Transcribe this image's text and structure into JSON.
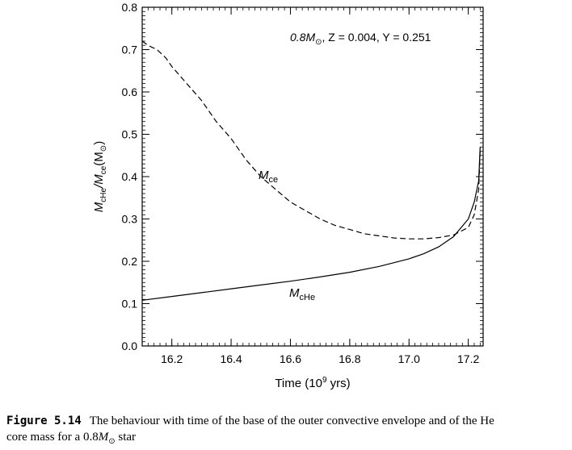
{
  "chart_data": {
    "type": "line",
    "annotation": {
      "mass": "0.8M",
      "mass_sub": "⊙",
      "rest": ", Z = 0.004, Y = 0.251"
    },
    "xlabel": {
      "main": "Time (10",
      "sup": "9",
      "end": " yrs)"
    },
    "ylabel": {
      "p1": "M",
      "s1": "cHe",
      "p2": "/M",
      "s2": "ce",
      "p3": "(M",
      "s3": "⊙",
      "p4": ")"
    },
    "xlim": [
      16.1,
      17.25
    ],
    "ylim": [
      0.0,
      0.8
    ],
    "xticks": [
      16.2,
      16.4,
      16.6,
      16.8,
      17.0,
      17.2
    ],
    "xtick_labels": [
      "16.2",
      "16.4",
      "16.6",
      "16.8",
      "17.0",
      "17.2"
    ],
    "yticks": [
      0.0,
      0.1,
      0.2,
      0.3,
      0.4,
      0.5,
      0.6,
      0.7,
      0.8
    ],
    "ytick_labels": [
      "0.0",
      "0.1",
      "0.2",
      "0.3",
      "0.4",
      "0.5",
      "0.6",
      "0.7",
      "0.8"
    ],
    "grid": false,
    "series": [
      {
        "name": "Mce",
        "label_main": "M",
        "label_sub": "ce",
        "style": "dashed",
        "x": [
          16.1,
          16.12,
          16.15,
          16.18,
          16.2,
          16.25,
          16.3,
          16.35,
          16.4,
          16.45,
          16.5,
          16.55,
          16.6,
          16.65,
          16.7,
          16.75,
          16.8,
          16.85,
          16.9,
          16.95,
          17.0,
          17.05,
          17.1,
          17.15,
          17.2,
          17.22,
          17.235,
          17.24
        ],
        "y": [
          0.72,
          0.71,
          0.7,
          0.68,
          0.66,
          0.62,
          0.58,
          0.53,
          0.49,
          0.44,
          0.4,
          0.37,
          0.34,
          0.32,
          0.3,
          0.285,
          0.275,
          0.265,
          0.26,
          0.255,
          0.253,
          0.253,
          0.256,
          0.262,
          0.28,
          0.31,
          0.37,
          0.46
        ]
      },
      {
        "name": "McHe",
        "label_main": "M",
        "label_sub": "cHe",
        "style": "solid",
        "x": [
          16.1,
          16.2,
          16.3,
          16.4,
          16.5,
          16.6,
          16.7,
          16.8,
          16.9,
          17.0,
          17.05,
          17.1,
          17.15,
          17.2,
          17.22,
          17.235,
          17.24
        ],
        "y": [
          0.108,
          0.117,
          0.126,
          0.135,
          0.144,
          0.153,
          0.163,
          0.174,
          0.188,
          0.206,
          0.218,
          0.234,
          0.258,
          0.3,
          0.34,
          0.39,
          0.47
        ]
      }
    ]
  },
  "caption": {
    "label": "Figure 5.14",
    "line1": "The behaviour with time of the base of the outer convective envelope and of the He",
    "line2_pre": "core mass for a 0.8",
    "line2_m": "M",
    "line2_sub": "⊙",
    "line2_post": " star"
  }
}
